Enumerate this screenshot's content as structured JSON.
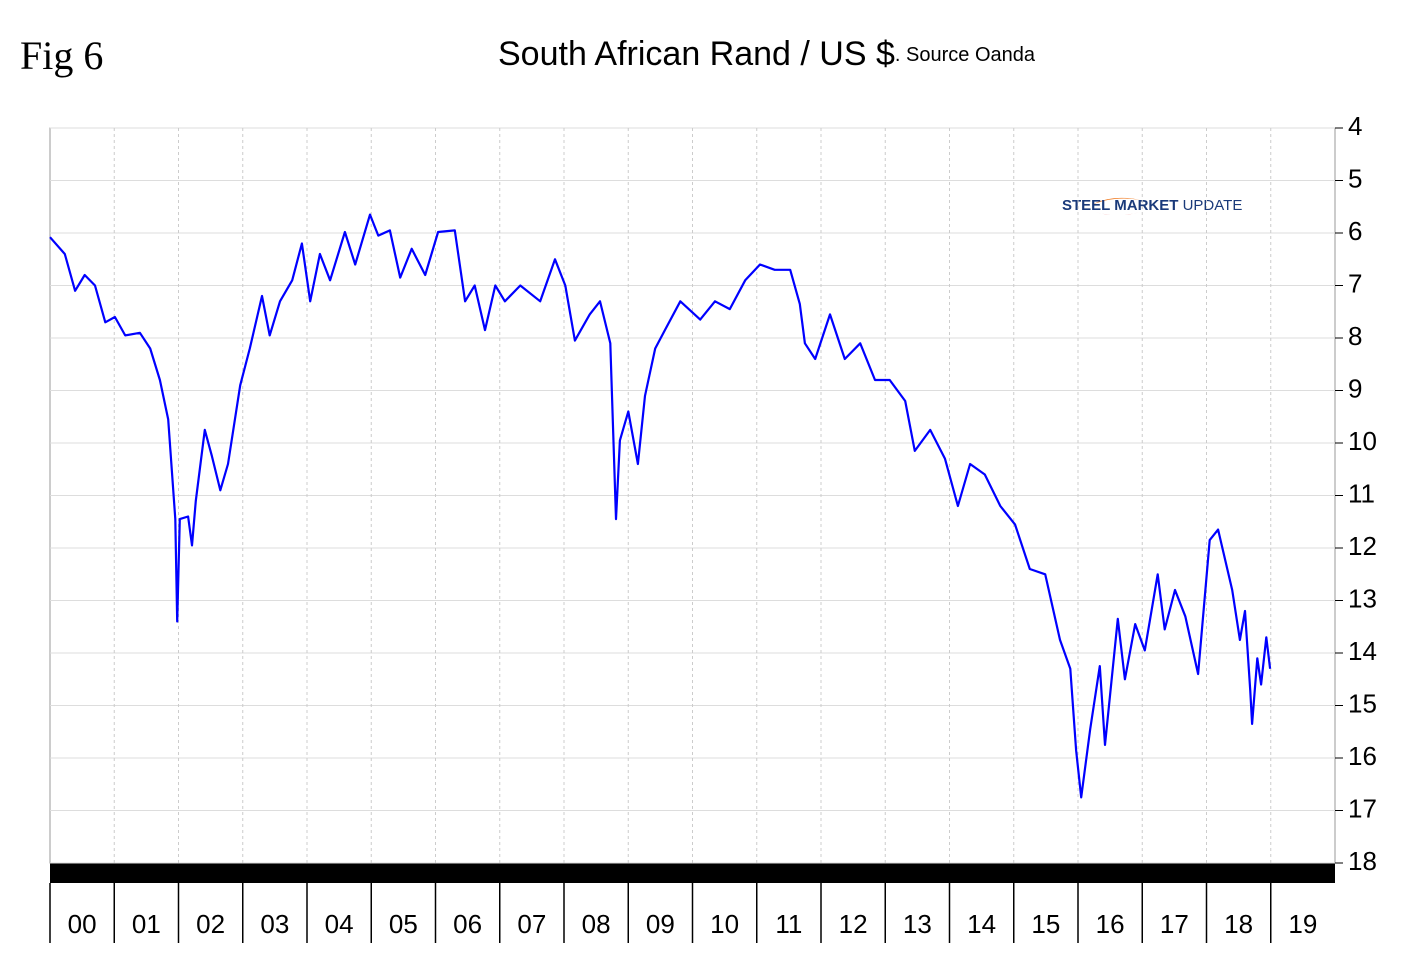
{
  "chart_data": {
    "type": "line",
    "figure_label": "Fig 6",
    "title": "South African Rand / US $",
    "subtitle": ". Source Oanda",
    "logo": {
      "part1": "STEEL",
      "part2": "MARKET",
      "part3": "UPDATE"
    },
    "xlim": [
      0,
      20
    ],
    "ylim": [
      4,
      18
    ],
    "y_inverted": true,
    "y_axis_side": "right",
    "grid": true,
    "xticks": [
      {
        "value": 0,
        "label": "00"
      },
      {
        "value": 1,
        "label": "01"
      },
      {
        "value": 2,
        "label": "02"
      },
      {
        "value": 3,
        "label": "03"
      },
      {
        "value": 4,
        "label": "04"
      },
      {
        "value": 5,
        "label": "05"
      },
      {
        "value": 6,
        "label": "06"
      },
      {
        "value": 7,
        "label": "07"
      },
      {
        "value": 8,
        "label": "08"
      },
      {
        "value": 9,
        "label": "09"
      },
      {
        "value": 10,
        "label": "10"
      },
      {
        "value": 11,
        "label": "11"
      },
      {
        "value": 12,
        "label": "12"
      },
      {
        "value": 13,
        "label": "13"
      },
      {
        "value": 14,
        "label": "14"
      },
      {
        "value": 15,
        "label": "15"
      },
      {
        "value": 16,
        "label": "16"
      },
      {
        "value": 17,
        "label": "17"
      },
      {
        "value": 18,
        "label": "18"
      },
      {
        "value": 19,
        "label": "19"
      }
    ],
    "yticks": [
      4,
      5,
      6,
      7,
      8,
      9,
      10,
      11,
      12,
      13,
      14,
      15,
      16,
      17,
      18
    ],
    "series": [
      {
        "color": "#0000ff",
        "x": [
          0,
          0.23,
          0.39,
          0.54,
          0.7,
          0.86,
          1.01,
          1.17,
          1.4,
          1.56,
          1.71,
          1.84,
          1.95,
          1.98,
          2.02,
          2.15,
          2.21,
          2.27,
          2.41,
          2.52,
          2.65,
          2.77,
          2.96,
          3.11,
          3.3,
          3.42,
          3.58,
          3.77,
          3.92,
          4.05,
          4.2,
          4.36,
          4.59,
          4.75,
          4.98,
          5.11,
          5.29,
          5.45,
          5.63,
          5.84,
          6.04,
          6.3,
          6.46,
          6.61,
          6.77,
          6.93,
          7.08,
          7.32,
          7.63,
          7.86,
          8.02,
          8.17,
          8.4,
          8.56,
          8.72,
          8.81,
          8.87,
          9.0,
          9.15,
          9.26,
          9.42,
          9.57,
          9.81,
          10.12,
          10.35,
          10.58,
          10.82,
          11.05,
          11.28,
          11.52,
          11.67,
          11.75,
          11.91,
          12.14,
          12.37,
          12.61,
          12.84,
          13.07,
          13.31,
          13.46,
          13.7,
          13.93,
          14.13,
          14.32,
          14.55,
          14.79,
          15.02,
          15.25,
          15.49,
          15.72,
          15.88,
          15.97,
          16.05,
          16.19,
          16.34,
          16.42,
          16.62,
          16.73,
          16.89,
          17.04,
          17.24,
          17.35,
          17.51,
          17.67,
          17.87,
          18.05,
          18.18,
          18.4,
          18.52,
          18.6,
          18.68,
          18.71,
          18.79,
          18.85,
          18.93,
          18.99
        ],
        "values": [
          6.08,
          6.4,
          7.1,
          6.8,
          7.0,
          7.7,
          7.6,
          7.95,
          7.9,
          8.2,
          8.8,
          9.55,
          11.45,
          13.4,
          11.45,
          11.4,
          11.95,
          11.1,
          9.75,
          10.25,
          10.9,
          10.4,
          8.9,
          8.2,
          7.2,
          7.95,
          7.3,
          6.9,
          6.2,
          7.3,
          6.4,
          6.9,
          5.98,
          6.6,
          5.65,
          6.05,
          5.95,
          6.85,
          6.3,
          6.8,
          5.98,
          5.95,
          7.3,
          7.0,
          7.85,
          7.0,
          7.3,
          7.0,
          7.3,
          6.5,
          7.0,
          8.05,
          7.55,
          7.3,
          8.1,
          11.45,
          9.95,
          9.4,
          10.4,
          9.1,
          8.2,
          7.85,
          7.3,
          7.65,
          7.3,
          7.45,
          6.9,
          6.6,
          6.7,
          6.7,
          7.35,
          8.1,
          8.4,
          7.55,
          8.4,
          8.1,
          8.8,
          8.8,
          9.2,
          10.15,
          9.75,
          10.3,
          11.2,
          10.4,
          10.6,
          11.2,
          11.55,
          12.4,
          12.5,
          13.75,
          14.3,
          15.85,
          16.75,
          15.45,
          14.25,
          15.75,
          13.35,
          14.5,
          13.45,
          13.95,
          12.5,
          13.55,
          12.8,
          13.3,
          14.4,
          11.85,
          11.65,
          12.8,
          13.75,
          13.2,
          14.7,
          15.35,
          14.1,
          14.6,
          13.7,
          14.3
        ]
      }
    ]
  }
}
